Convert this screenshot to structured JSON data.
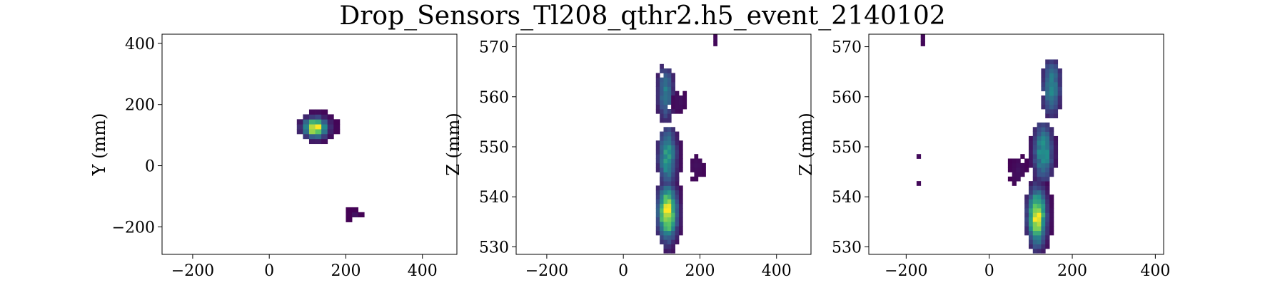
{
  "title": "Drop_Sensors_Tl208_qthr2.h5_event_2140102",
  "colormap": "viridis",
  "colormap_stops": [
    "#440154",
    "#3b528b",
    "#21918c",
    "#5ec962",
    "#fde725"
  ],
  "chart_data": [
    {
      "type": "heatmap",
      "xlabel": "",
      "ylabel": "Y (mm)",
      "xlim": [
        -280,
        490
      ],
      "ylim": [
        -290,
        430
      ],
      "xticks": [
        -200,
        0,
        200,
        400
      ],
      "yticks": [
        -200,
        0,
        200,
        400
      ],
      "bin_size": [
        16,
        16
      ],
      "clusters": [
        {
          "cx": 120,
          "cy": 125,
          "sx": 20,
          "sy": 20,
          "rx": 3,
          "ry": 3,
          "peak": 1.0,
          "density": 1.0
        },
        {
          "cx": 224,
          "cy": -163,
          "sx": 8,
          "sy": 8,
          "rx": 1,
          "ry": 1,
          "peak": 0.05,
          "density": 0.7
        }
      ]
    },
    {
      "type": "heatmap",
      "xlabel": "",
      "ylabel": "Z (mm)",
      "xlim": [
        -280,
        490
      ],
      "ylim": [
        528.5,
        572.5
      ],
      "xticks": [
        -200,
        0,
        200,
        400
      ],
      "yticks": [
        530,
        540,
        550,
        560,
        570
      ],
      "bin_size": [
        10,
        0.9
      ],
      "clusters": [
        {
          "cx": 115,
          "cy": 537,
          "sx": 16,
          "sy": 3.5,
          "rx": 3,
          "ry": 9,
          "peak": 1.0,
          "density": 1.0
        },
        {
          "cx": 115,
          "cy": 548,
          "sx": 16,
          "sy": 4,
          "rx": 3,
          "ry": 6,
          "peak": 0.55,
          "density": 1.0
        },
        {
          "cx": 110,
          "cy": 561,
          "sx": 14,
          "sy": 4,
          "rx": 2,
          "ry": 6,
          "peak": 0.4,
          "density": 0.95
        },
        {
          "cx": 145,
          "cy": 559,
          "sx": 15,
          "sy": 2,
          "rx": 2,
          "ry": 2,
          "peak": 0.05,
          "density": 0.6
        },
        {
          "cx": 235,
          "cy": 571.5,
          "sx": 5,
          "sy": 1,
          "rx": 0,
          "ry": 1,
          "peak": 0.05,
          "density": 1.0
        },
        {
          "cx": 190,
          "cy": 546,
          "sx": 15,
          "sy": 2,
          "rx": 2,
          "ry": 3,
          "peak": 0.05,
          "density": 0.45
        }
      ]
    },
    {
      "type": "heatmap",
      "xlabel": "",
      "ylabel": "Z (mm)",
      "xlim": [
        -290,
        420
      ],
      "ylim": [
        528.5,
        572.5
      ],
      "xticks": [
        -200,
        0,
        200,
        400
      ],
      "yticks": [
        530,
        540,
        550,
        560,
        570
      ],
      "bin_size": [
        10,
        0.9
      ],
      "clusters": [
        {
          "cx": 115,
          "cy": 536,
          "sx": 14,
          "sy": 3.5,
          "rx": 3,
          "ry": 8,
          "peak": 1.0,
          "density": 1.0
        },
        {
          "cx": 130,
          "cy": 549,
          "sx": 15,
          "sy": 4,
          "rx": 3,
          "ry": 6,
          "peak": 0.55,
          "density": 1.0
        },
        {
          "cx": 150,
          "cy": 562,
          "sx": 15,
          "sy": 4,
          "rx": 2,
          "ry": 6,
          "peak": 0.45,
          "density": 0.95
        },
        {
          "cx": -165,
          "cy": 571.5,
          "sx": 5,
          "sy": 1,
          "rx": 0,
          "ry": 1,
          "peak": 0.05,
          "density": 1.0
        },
        {
          "cx": -175,
          "cy": 548,
          "sx": 5,
          "sy": 0.5,
          "rx": 0,
          "ry": 0,
          "peak": 0.05,
          "density": 1.0
        },
        {
          "cx": -175,
          "cy": 543,
          "sx": 5,
          "sy": 0.5,
          "rx": 0,
          "ry": 0,
          "peak": 0.05,
          "density": 1.0
        },
        {
          "cx": 70,
          "cy": 545,
          "sx": 12,
          "sy": 2,
          "rx": 2,
          "ry": 3,
          "peak": 0.05,
          "density": 0.45
        }
      ]
    }
  ]
}
